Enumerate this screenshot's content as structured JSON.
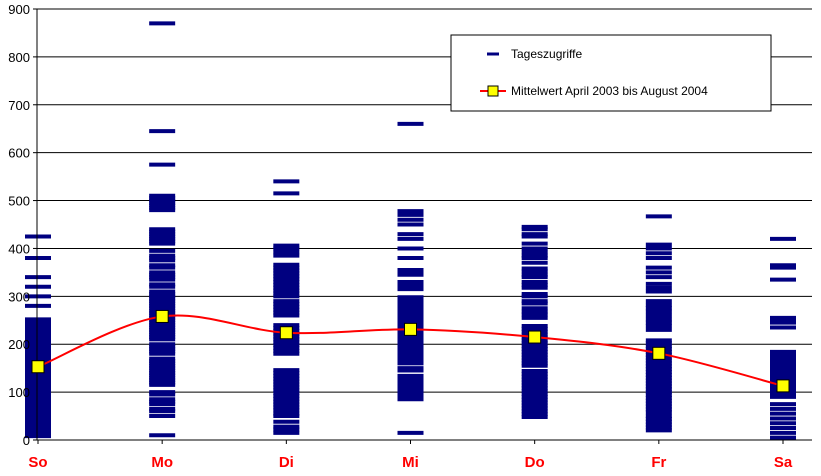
{
  "chart_data": {
    "type": "scatter",
    "title": "",
    "xlabel": "",
    "ylabel": "",
    "ylim": [
      0,
      900
    ],
    "yticks": [
      0,
      100,
      200,
      300,
      400,
      500,
      600,
      700,
      800,
      900
    ],
    "grid": true,
    "legend_position": "top-right",
    "categories": [
      "So",
      "Mo",
      "Di",
      "Mi",
      "Do",
      "Fr",
      "Sa"
    ],
    "series": [
      {
        "name": "Tageszugriffe",
        "marker": "dash",
        "color": "#000080",
        "values": [
          [
            8,
            14,
            20,
            26,
            32,
            38,
            44,
            50,
            56,
            62,
            68,
            74,
            80,
            86,
            92,
            98,
            104,
            110,
            116,
            122,
            128,
            134,
            140,
            146,
            152,
            158,
            164,
            170,
            176,
            182,
            188,
            194,
            200,
            206,
            212,
            218,
            224,
            230,
            236,
            242,
            248,
            252,
            280,
            300,
            320,
            340,
            380,
            425
          ],
          [
            10,
            50,
            60,
            65,
            75,
            80,
            85,
            95,
            100,
            115,
            120,
            125,
            130,
            135,
            140,
            145,
            150,
            155,
            160,
            165,
            170,
            180,
            185,
            190,
            195,
            200,
            210,
            215,
            220,
            225,
            230,
            235,
            240,
            245,
            250,
            255,
            260,
            265,
            270,
            275,
            280,
            285,
            290,
            295,
            300,
            305,
            310,
            320,
            325,
            335,
            340,
            345,
            350,
            360,
            365,
            375,
            380,
            385,
            395,
            410,
            415,
            420,
            425,
            430,
            435,
            440,
            480,
            485,
            490,
            495,
            500,
            505,
            510,
            575,
            645,
            870
          ],
          [
            15,
            22,
            28,
            38,
            50,
            55,
            62,
            68,
            74,
            80,
            86,
            92,
            98,
            104,
            110,
            116,
            122,
            128,
            134,
            140,
            146,
            180,
            186,
            192,
            198,
            204,
            210,
            216,
            222,
            228,
            234,
            240,
            260,
            266,
            272,
            278,
            284,
            290,
            300,
            306,
            312,
            318,
            324,
            330,
            336,
            342,
            348,
            354,
            360,
            366,
            385,
            392,
            400,
            406,
            515,
            540
          ],
          [
            15,
            85,
            92,
            98,
            104,
            110,
            116,
            122,
            128,
            134,
            145,
            150,
            160,
            166,
            172,
            178,
            184,
            190,
            196,
            202,
            208,
            214,
            220,
            226,
            232,
            238,
            244,
            250,
            256,
            262,
            268,
            274,
            280,
            286,
            292,
            298,
            315,
            320,
            325,
            330,
            345,
            350,
            355,
            380,
            400,
            420,
            430,
            450,
            460,
            470,
            478,
            660
          ],
          [
            48,
            54,
            60,
            66,
            72,
            78,
            84,
            90,
            96,
            102,
            108,
            114,
            120,
            126,
            132,
            138,
            144,
            155,
            160,
            166,
            172,
            178,
            184,
            190,
            196,
            202,
            208,
            214,
            220,
            226,
            232,
            238,
            255,
            262,
            268,
            275,
            285,
            290,
            300,
            305,
            318,
            324,
            330,
            340,
            345,
            352,
            358,
            370,
            380,
            385,
            392,
            400,
            410,
            425,
            430,
            440,
            445
          ],
          [
            20,
            26,
            32,
            38,
            44,
            50,
            58,
            64,
            70,
            76,
            82,
            88,
            94,
            100,
            106,
            112,
            118,
            124,
            130,
            136,
            142,
            148,
            154,
            160,
            166,
            172,
            178,
            184,
            190,
            196,
            202,
            208,
            230,
            238,
            245,
            252,
            260,
            268,
            275,
            282,
            290,
            310,
            318,
            326,
            340,
            350,
            360,
            380,
            390,
            400,
            408,
            467
          ],
          [
            5,
            15,
            25,
            35,
            45,
            55,
            65,
            75,
            90,
            96,
            102,
            108,
            114,
            120,
            126,
            132,
            138,
            144,
            150,
            156,
            162,
            168,
            174,
            180,
            184,
            235,
            245,
            250,
            255,
            335,
            360,
            365,
            420
          ]
        ]
      },
      {
        "name": "Mittelwert April 2003 bis August 2004",
        "marker": "square",
        "color": "#ff0000",
        "marker_fill": "#ffff00",
        "values": [
          153,
          258,
          224,
          231,
          215,
          181,
          113
        ]
      }
    ]
  }
}
